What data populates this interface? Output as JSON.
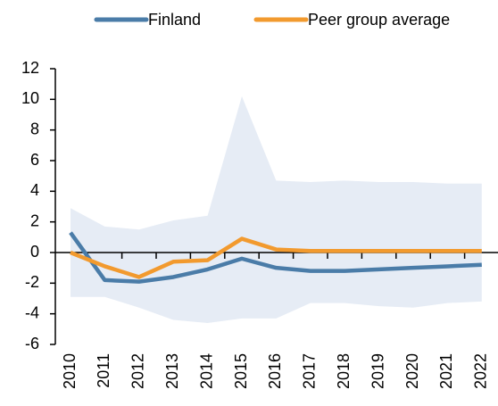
{
  "chart_data": {
    "type": "line",
    "categories": [
      "2010",
      "2011",
      "2012",
      "2013",
      "2014",
      "2015",
      "2016",
      "2017",
      "2018",
      "2019",
      "2020",
      "2021",
      "2022"
    ],
    "series": [
      {
        "name": "Finland",
        "color": "#4a7ca8",
        "values": [
          1.3,
          -1.8,
          -1.9,
          -1.6,
          -1.1,
          -0.4,
          -1.0,
          -1.2,
          -1.2,
          -1.1,
          -1.0,
          -0.9,
          -0.8
        ]
      },
      {
        "name": "Peer group average",
        "color": "#f29a2e",
        "values": [
          0,
          -0.9,
          -1.6,
          -0.6,
          -0.5,
          0.9,
          0.2,
          0.1,
          0.1,
          0.1,
          0.1,
          0.1,
          0.1
        ]
      }
    ],
    "band": {
      "color": "#e6ecf5",
      "upper": [
        2.9,
        1.7,
        1.5,
        2.1,
        2.4,
        10.2,
        4.7,
        4.6,
        4.7,
        4.6,
        4.6,
        4.5,
        4.5
      ],
      "lower": [
        -2.9,
        -2.9,
        -3.6,
        -4.4,
        -4.6,
        -4.3,
        -4.3,
        -3.3,
        -3.3,
        -3.5,
        -3.6,
        -3.3,
        -3.2
      ]
    },
    "ylim": [
      -6,
      12
    ],
    "yticks": [
      -6,
      -4,
      -2,
      0,
      2,
      4,
      6,
      8,
      10,
      12
    ]
  }
}
